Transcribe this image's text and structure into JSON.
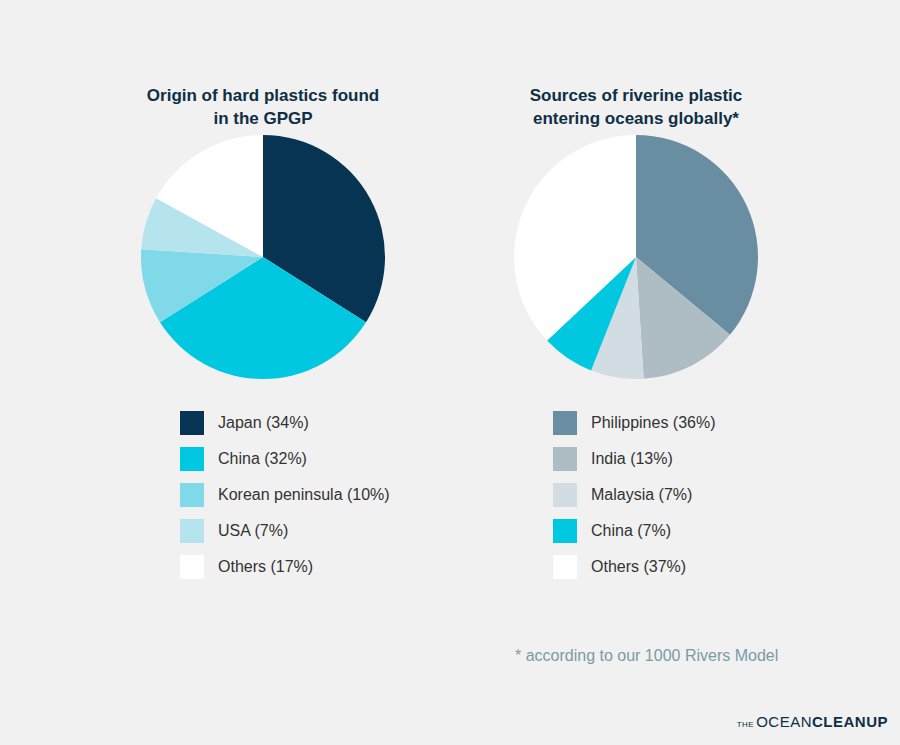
{
  "chart_data": [
    {
      "type": "pie",
      "title": "Origin of hard plastics found\nin the GPGP",
      "categories": [
        "Japan (34%)",
        "China (32%)",
        "Korean peninsula (10%)",
        "USA (7%)",
        "Others (17%)"
      ],
      "values": [
        34,
        32,
        10,
        7,
        17
      ],
      "colors": [
        "#063452",
        "#00c8e1",
        "#7fd9e9",
        "#b5e4ef",
        "#ffffff"
      ],
      "legend": "bottom"
    },
    {
      "type": "pie",
      "title": "Sources of riverine plastic\nentering oceans globally*",
      "categories": [
        "Philippines (36%)",
        "India (13%)",
        "Malaysia (7%)",
        "China (7%)",
        "Others (37%)"
      ],
      "values": [
        36,
        13,
        7,
        7,
        37
      ],
      "colors": [
        "#6a8ea1",
        "#aebcc3",
        "#d1dde2",
        "#00c8e1",
        "#ffffff"
      ],
      "legend": "bottom"
    }
  ],
  "footnote": "* according to our 1000 Rivers Model",
  "logo": "THE OCEAN CLEANUP"
}
